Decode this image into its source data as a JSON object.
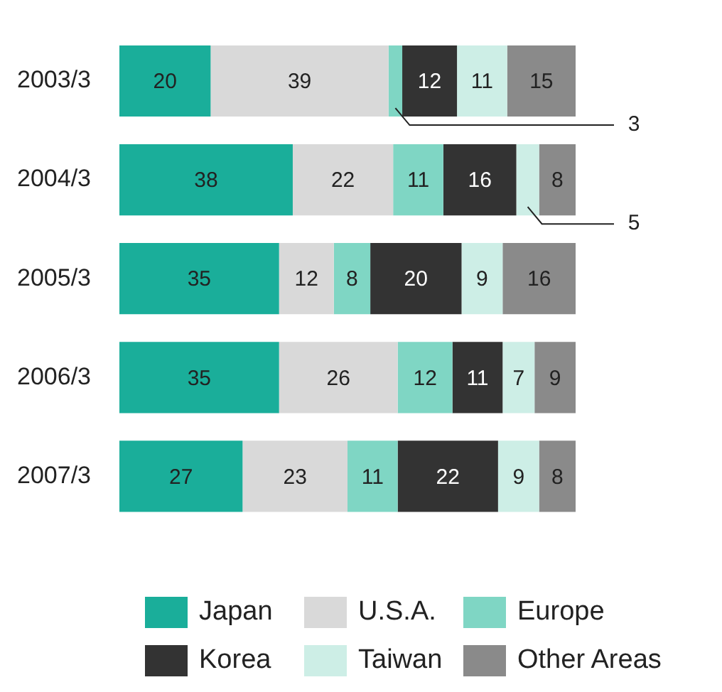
{
  "chart_data": {
    "type": "bar",
    "orientation": "horizontal",
    "stacked": true,
    "legend": "bottom",
    "categories": [
      "2003/3",
      "2004/3",
      "2005/3",
      "2006/3",
      "2007/3"
    ],
    "series": [
      {
        "name": "Japan",
        "color": "#1aae9a",
        "values": [
          20,
          38,
          35,
          35,
          27
        ],
        "value_labels": [
          "20",
          "38",
          "35",
          "35",
          "27"
        ]
      },
      {
        "name": "U.S.A.",
        "color": "#d9d9d9",
        "values": [
          39,
          22,
          12,
          26,
          23
        ],
        "value_labels": [
          "39",
          "22",
          "12",
          "26",
          "23"
        ]
      },
      {
        "name": "Europe",
        "color": "#7fd6c4",
        "values": [
          3,
          11,
          8,
          12,
          11
        ],
        "value_labels": [
          null,
          "11",
          "8",
          "12",
          "11"
        ]
      },
      {
        "name": "Korea",
        "color": "#333333",
        "values": [
          12,
          16,
          20,
          11,
          22
        ],
        "value_labels": [
          "12",
          "16",
          "20",
          "11",
          "22"
        ]
      },
      {
        "name": "Taiwan",
        "color": "#cdeee6",
        "values": [
          11,
          5,
          9,
          7,
          9
        ],
        "value_labels": [
          "11",
          null,
          "9",
          "7",
          "9"
        ]
      },
      {
        "name": "Other Areas",
        "color": "#8a8a8a",
        "values": [
          15,
          8,
          16,
          9,
          8
        ],
        "value_labels": [
          "15",
          "8",
          "16",
          "9",
          "8"
        ]
      }
    ],
    "annotations": [
      "3",
      "5"
    ]
  }
}
